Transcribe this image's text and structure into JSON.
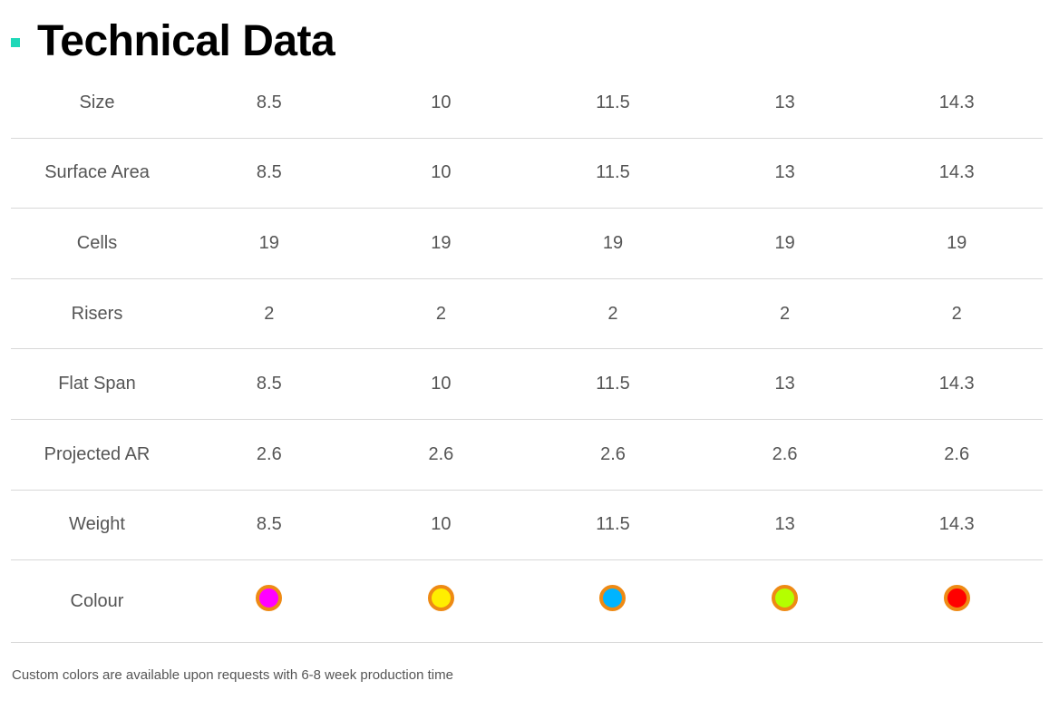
{
  "heading": {
    "title": "Technical Data",
    "marker_color": "#1fd8b8"
  },
  "table": {
    "rows": [
      {
        "label": "Size",
        "values": [
          "8.5",
          "10",
          "11.5",
          "13",
          "14.3"
        ]
      },
      {
        "label": "Surface Area",
        "values": [
          "8.5",
          "10",
          "11.5",
          "13",
          "14.3"
        ]
      },
      {
        "label": "Cells",
        "values": [
          "19",
          "19",
          "19",
          "19",
          "19"
        ]
      },
      {
        "label": "Risers",
        "values": [
          "2",
          "2",
          "2",
          "2",
          "2"
        ]
      },
      {
        "label": "Flat Span",
        "values": [
          "8.5",
          "10",
          "11.5",
          "13",
          "14.3"
        ]
      },
      {
        "label": "Projected AR",
        "values": [
          "2.6",
          "2.6",
          "2.6",
          "2.6",
          "2.6"
        ]
      },
      {
        "label": "Weight",
        "values": [
          "8.5",
          "10",
          "11.5",
          "13",
          "14.3"
        ]
      }
    ],
    "colour_row": {
      "label": "Colour",
      "ring_color": "#ee8a14",
      "swatches": [
        "#ff00ff",
        "#ffee00",
        "#00b4ff",
        "#b4ff00",
        "#ff0000"
      ]
    }
  },
  "footnote": "Custom colors are available upon requests with 6-8 week production time"
}
